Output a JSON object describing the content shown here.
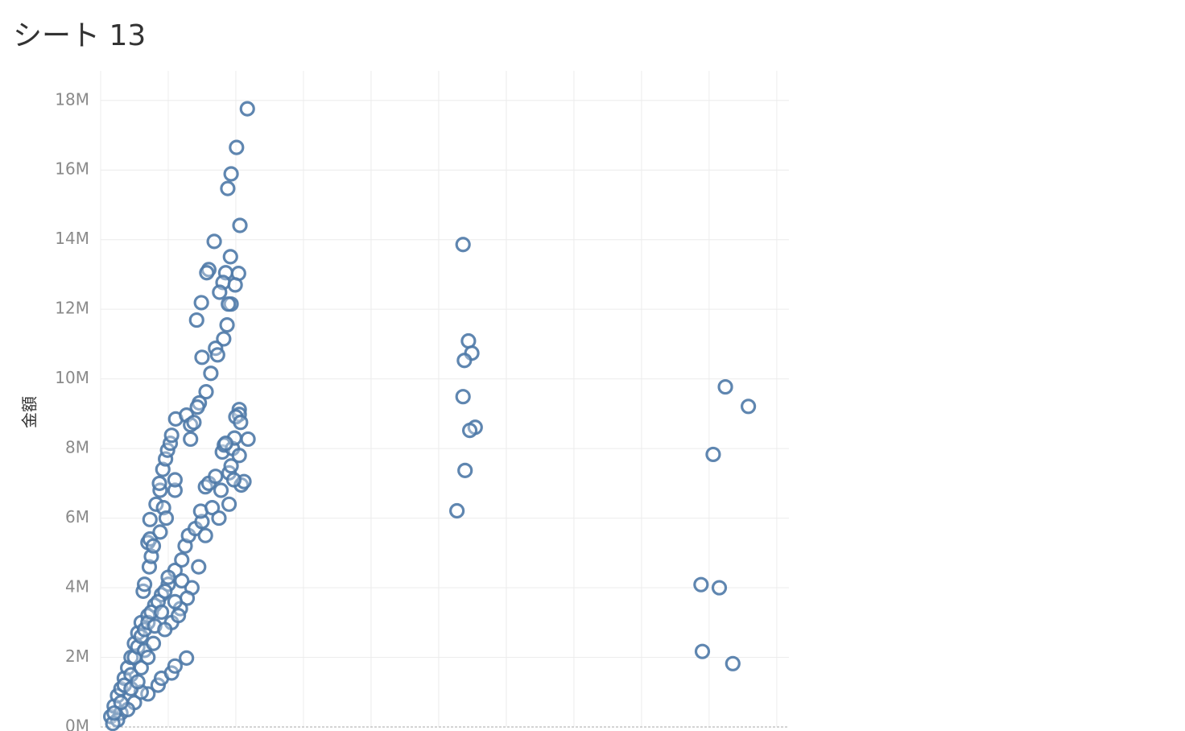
{
  "chart_data": {
    "type": "scatter",
    "title": "シート 13",
    "ylabel": "金額",
    "xlim": [
      0,
      10.18
    ],
    "xticks": [
      0,
      1,
      2,
      3,
      4,
      5,
      6,
      7,
      8,
      9,
      10
    ],
    "ylim": [
      0,
      18.85
    ],
    "yticks": [
      {
        "value": 0,
        "label": "0M"
      },
      {
        "value": 2,
        "label": "2M"
      },
      {
        "value": 4,
        "label": "4M"
      },
      {
        "value": 6,
        "label": "6M"
      },
      {
        "value": 8,
        "label": "8M"
      },
      {
        "value": 10,
        "label": "10M"
      },
      {
        "value": 12,
        "label": "12M"
      },
      {
        "value": 14,
        "label": "14M"
      },
      {
        "value": 16,
        "label": "16M"
      },
      {
        "value": 18,
        "label": "18M"
      }
    ],
    "grid": true,
    "color": "#4e79a7",
    "x": [
      2.17,
      2.01,
      1.93,
      1.88,
      2.06,
      1.68,
      1.92,
      1.6,
      1.57,
      1.85,
      2.04,
      1.81,
      1.99,
      1.76,
      1.93,
      1.89,
      1.49,
      1.42,
      1.87,
      1.82,
      1.7,
      1.73,
      1.5,
      1.63,
      1.56,
      1.46,
      1.43,
      2.05,
      2.05,
      2.0,
      2.07,
      0.15,
      0.2,
      0.25,
      0.3,
      0.35,
      0.4,
      0.45,
      0.5,
      0.55,
      0.6,
      0.63,
      0.65,
      0.72,
      0.75,
      0.7,
      0.73,
      0.78,
      0.88,
      0.73,
      0.82,
      0.93,
      0.97,
      1.1,
      1.1,
      0.88,
      0.87,
      0.92,
      0.96,
      0.99,
      1.03,
      1.05,
      1.11,
      1.27,
      1.33,
      1.38,
      1.33,
      0.7,
      0.8,
      0.9,
      1.0,
      1.1,
      1.2,
      1.25,
      1.3,
      1.4,
      1.45,
      1.5,
      1.48,
      1.55,
      1.6,
      1.65,
      1.7,
      1.75,
      1.78,
      1.8,
      1.83,
      1.9,
      1.9,
      1.93,
      1.95,
      1.98,
      2.05,
      2.08,
      2.12,
      2.18,
      1.85,
      1.97,
      1.55,
      1.35,
      1.28,
      1.18,
      1.05,
      0.3,
      0.5,
      0.7,
      0.85,
      0.9,
      1.05,
      1.1,
      1.27,
      0.6,
      0.4,
      0.25,
      0.18,
      0.5,
      0.55,
      0.6,
      0.65,
      0.7,
      0.75,
      0.85,
      0.95,
      1.0,
      0.9,
      0.8,
      0.65,
      0.45,
      0.35,
      0.45,
      0.55,
      0.6,
      0.7,
      0.78,
      0.95,
      1.1,
      1.2,
      1.15,
      0.3,
      0.2,
      5.36,
      5.44,
      5.49,
      5.38,
      5.36,
      5.54,
      5.46,
      5.39,
      5.27,
      9.24,
      9.58,
      9.06,
      8.88,
      9.15,
      8.9,
      9.35
    ],
    "values": [
      17.76,
      16.65,
      15.89,
      15.47,
      14.41,
      13.95,
      13.51,
      13.14,
      13.05,
      13.05,
      13.03,
      12.77,
      12.7,
      12.49,
      12.15,
      12.15,
      12.19,
      11.69,
      11.55,
      11.15,
      10.88,
      10.69,
      10.62,
      10.16,
      9.63,
      9.31,
      9.19,
      9.12,
      8.98,
      8.91,
      8.75,
      0.3,
      0.6,
      0.9,
      1.1,
      1.4,
      1.7,
      2.0,
      2.4,
      2.7,
      3.0,
      3.9,
      4.1,
      4.6,
      4.9,
      5.3,
      5.4,
      5.2,
      5.6,
      5.96,
      6.4,
      6.3,
      6.0,
      6.8,
      7.1,
      6.8,
      7.0,
      7.4,
      7.7,
      7.95,
      8.15,
      8.38,
      8.85,
      8.96,
      8.68,
      8.75,
      8.27,
      3.2,
      3.5,
      3.8,
      4.1,
      4.5,
      4.8,
      5.2,
      5.5,
      5.7,
      4.6,
      5.9,
      6.2,
      6.9,
      7.0,
      6.3,
      7.2,
      6.0,
      6.8,
      7.9,
      8.1,
      6.4,
      7.3,
      7.5,
      8.0,
      8.3,
      7.8,
      6.95,
      7.05,
      8.27,
      8.15,
      7.1,
      5.5,
      4.0,
      3.7,
      3.4,
      3.0,
      0.4,
      0.7,
      0.95,
      1.2,
      1.4,
      1.55,
      1.75,
      1.98,
      1.0,
      0.5,
      0.2,
      0.1,
      2.0,
      2.3,
      2.6,
      2.8,
      3.0,
      3.3,
      3.6,
      3.9,
      4.3,
      3.3,
      2.9,
      2.2,
      1.5,
      1.2,
      1.1,
      1.3,
      1.7,
      2.0,
      2.4,
      2.8,
      3.6,
      4.2,
      3.2,
      0.7,
      0.4,
      13.86,
      11.09,
      10.74,
      10.53,
      9.49,
      8.61,
      8.52,
      7.37,
      6.21,
      9.77,
      9.21,
      7.83,
      4.09,
      4.0,
      2.17,
      1.82
    ]
  }
}
